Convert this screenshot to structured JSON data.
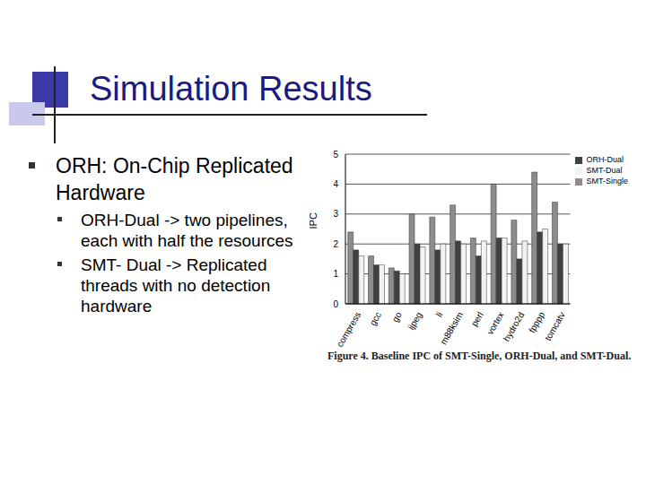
{
  "slide": {
    "title": "Simulation Results",
    "bullets": [
      {
        "text": "ORH: On-Chip Replicated Hardware",
        "sub": [
          "ORH-Dual -> two pipelines, each with half the resources",
          "SMT- Dual -> Replicated threads with no detection hardware"
        ]
      }
    ]
  },
  "chart_data": {
    "type": "bar",
    "caption": "Figure 4. Baseline IPC of SMT-Single, ORH-Dual, and SMT-Dual.",
    "y_label": "IPC",
    "categories": [
      "compress",
      "gcc",
      "go",
      "ijpeg",
      "li",
      "m88ksim",
      "perl",
      "vortex",
      "hydro2d",
      "fpppp",
      "tomcatv"
    ],
    "series": [
      {
        "name": "SMT-Single",
        "color": "#8c8c8c",
        "values": [
          2.4,
          1.6,
          1.2,
          3.0,
          2.9,
          3.3,
          2.2,
          4.0,
          2.8,
          4.4,
          3.4
        ]
      },
      {
        "name": "ORH-Dual",
        "color": "#404040",
        "values": [
          1.8,
          1.3,
          1.1,
          2.0,
          1.8,
          2.1,
          1.6,
          2.2,
          1.5,
          2.4,
          2.0
        ]
      },
      {
        "name": "SMT-Dual",
        "color": "#f2f2f2",
        "values": [
          1.6,
          1.3,
          1.0,
          1.9,
          2.0,
          2.0,
          2.1,
          2.2,
          2.1,
          2.5,
          2.0
        ]
      }
    ],
    "ylim": [
      0,
      5
    ],
    "yticks": [
      0,
      1,
      2,
      3,
      4,
      5
    ],
    "grid": true,
    "legend": "right"
  }
}
